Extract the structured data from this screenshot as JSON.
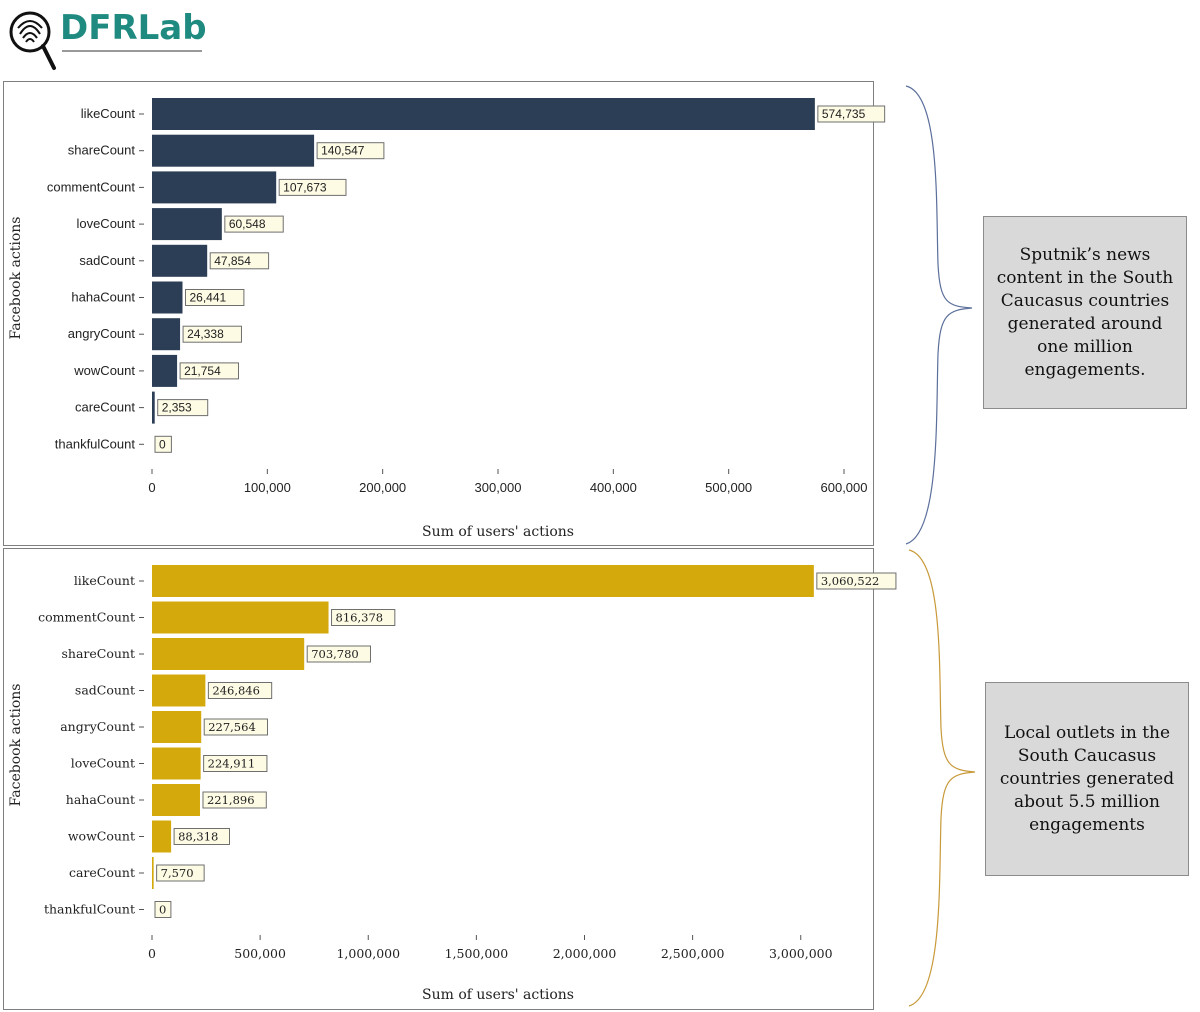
{
  "logo": {
    "text": "DFRLab",
    "icon": "fingerprint-magnifier-icon",
    "color": "#1f8a80"
  },
  "notes": [
    "Sputnik’s news content in the South Caucasus countries generated around one million engagements.",
    "Local outlets in the South Caucasus countries generated about 5.5 million engagements"
  ],
  "chart_data": [
    {
      "type": "bar",
      "orientation": "horizontal",
      "categories": [
        "likeCount",
        "shareCount",
        "commentCount",
        "loveCount",
        "sadCount",
        "hahaCount",
        "angryCount",
        "wowCount",
        "careCount",
        "thankfulCount"
      ],
      "values": [
        574735,
        140547,
        107673,
        60548,
        47854,
        26441,
        24338,
        21754,
        2353,
        0
      ],
      "value_labels": [
        "574,735",
        "140,547",
        "107,673",
        "60,548",
        "47,854",
        "26,441",
        "24,338",
        "21,754",
        "2,353",
        "0"
      ],
      "xlabel": "Sum of users' actions",
      "ylabel": "Facebook actions",
      "xlim": [
        0,
        600000
      ],
      "ticks": [
        0,
        100000,
        200000,
        300000,
        400000,
        500000,
        600000
      ],
      "tick_labels": [
        "0",
        "100,000",
        "200,000",
        "300,000",
        "400,000",
        "500,000",
        "600,000"
      ],
      "bar_color": "#2c3e55",
      "brace_color": "#5b6f9a",
      "grid": false
    },
    {
      "type": "bar",
      "orientation": "horizontal",
      "categories": [
        "likeCount",
        "commentCount",
        "shareCount",
        "sadCount",
        "angryCount",
        "loveCount",
        "hahaCount",
        "wowCount",
        "careCount",
        "thankfulCount"
      ],
      "values": [
        3060522,
        816378,
        703780,
        246846,
        227564,
        224911,
        221896,
        88318,
        7570,
        0
      ],
      "value_labels": [
        "3,060,522",
        "816,378",
        "703,780",
        "246,846",
        "227,564",
        "224,911",
        "221,896",
        "88,318",
        "7,570",
        "0"
      ],
      "xlabel": "Sum of users' actions",
      "ylabel": "Facebook actions",
      "xlim": [
        0,
        3200000
      ],
      "ticks": [
        0,
        500000,
        1000000,
        1500000,
        2000000,
        2500000,
        3000000
      ],
      "tick_labels": [
        "0",
        "500,000",
        "1,000,000",
        "1,500,000",
        "2,000,000",
        "2,500,000",
        "3,000,000"
      ],
      "bar_color": "#d4a90c",
      "brace_color": "#c89a3a",
      "grid": false
    }
  ]
}
